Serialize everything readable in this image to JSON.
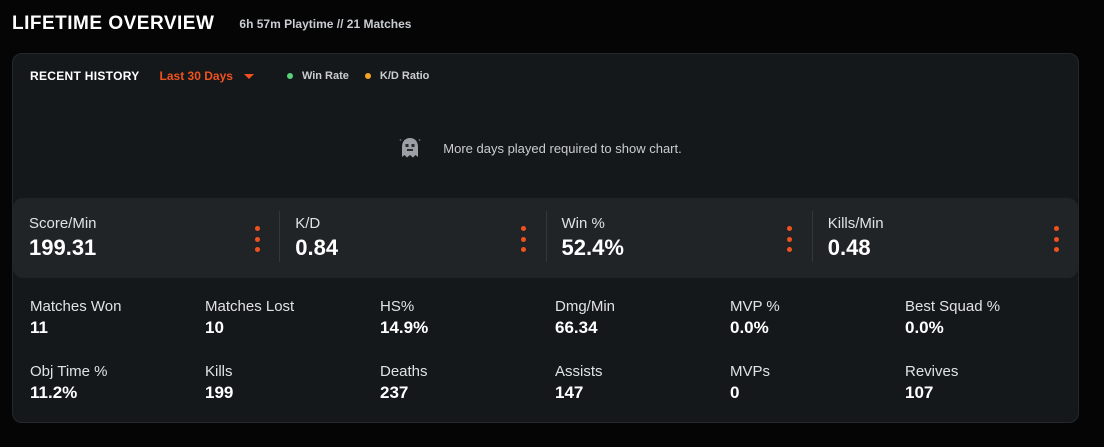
{
  "header": {
    "title": "LIFETIME OVERVIEW",
    "subtitle": "6h 57m Playtime // 21 Matches"
  },
  "history": {
    "title": "RECENT HISTORY",
    "range_selected": "Last 30 Days",
    "legend": [
      {
        "label": "Win Rate",
        "color": "#5ad07a"
      },
      {
        "label": "K/D Ratio",
        "color": "#f5a524"
      }
    ],
    "empty_icon": "ghost-icon",
    "empty_message": "More days played required to show chart."
  },
  "highlights": [
    {
      "label": "Score/Min",
      "value": "199.31",
      "menu_icon": "kebab-icon"
    },
    {
      "label": "K/D",
      "value": "0.84",
      "menu_icon": "kebab-icon"
    },
    {
      "label": "Win %",
      "value": "52.4%",
      "menu_icon": "kebab-icon"
    },
    {
      "label": "Kills/Min",
      "value": "0.48",
      "menu_icon": "kebab-icon"
    }
  ],
  "stats_rows": [
    [
      {
        "label": "Matches Won",
        "value": "11"
      },
      {
        "label": "Matches Lost",
        "value": "10"
      },
      {
        "label": "HS%",
        "value": "14.9%"
      },
      {
        "label": "Dmg/Min",
        "value": "66.34"
      },
      {
        "label": "MVP %",
        "value": "0.0%"
      },
      {
        "label": "Best Squad %",
        "value": "0.0%"
      }
    ],
    [
      {
        "label": "Obj Time %",
        "value": "11.2%"
      },
      {
        "label": "Kills",
        "value": "199"
      },
      {
        "label": "Deaths",
        "value": "237"
      },
      {
        "label": "Assists",
        "value": "147"
      },
      {
        "label": "MVPs",
        "value": "0"
      },
      {
        "label": "Revives",
        "value": "107"
      }
    ]
  ],
  "colors": {
    "accent": "#f0521f",
    "card_bg": "#15181b",
    "band_bg": "#212427"
  }
}
